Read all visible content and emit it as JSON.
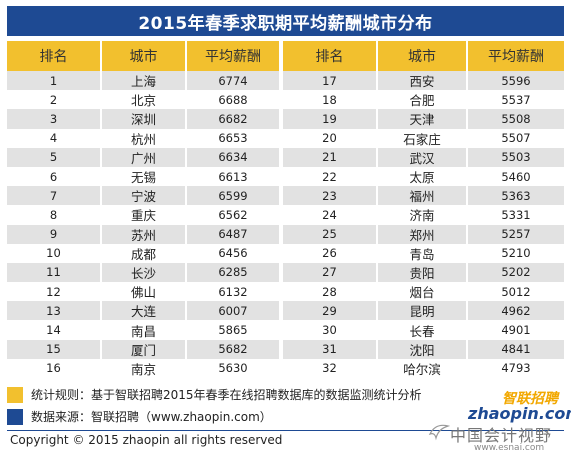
{
  "title": "2015年春季求职期平均薪酬城市分布",
  "headers": [
    "排名",
    "城市",
    "平均薪酬",
    "排名",
    "城市",
    "平均薪酬"
  ],
  "rows": [
    {
      "rank1": "1",
      "city1": "上海",
      "salary1": "6774",
      "rank2": "17",
      "city2": "西安",
      "salary2": "5596"
    },
    {
      "rank1": "2",
      "city1": "北京",
      "salary1": "6688",
      "rank2": "18",
      "city2": "合肥",
      "salary2": "5537"
    },
    {
      "rank1": "3",
      "city1": "深圳",
      "salary1": "6682",
      "rank2": "19",
      "city2": "天津",
      "salary2": "5508"
    },
    {
      "rank1": "4",
      "city1": "杭州",
      "salary1": "6653",
      "rank2": "20",
      "city2": "石家庄",
      "salary2": "5507"
    },
    {
      "rank1": "5",
      "city1": "广州",
      "salary1": "6634",
      "rank2": "21",
      "city2": "武汉",
      "salary2": "5503"
    },
    {
      "rank1": "6",
      "city1": "无锡",
      "salary1": "6613",
      "rank2": "22",
      "city2": "太原",
      "salary2": "5460"
    },
    {
      "rank1": "7",
      "city1": "宁波",
      "salary1": "6599",
      "rank2": "23",
      "city2": "福州",
      "salary2": "5363"
    },
    {
      "rank1": "8",
      "city1": "重庆",
      "salary1": "6562",
      "rank2": "24",
      "city2": "济南",
      "salary2": "5331"
    },
    {
      "rank1": "9",
      "city1": "苏州",
      "salary1": "6487",
      "rank2": "25",
      "city2": "郑州",
      "salary2": "5257"
    },
    {
      "rank1": "10",
      "city1": "成都",
      "salary1": "6456",
      "rank2": "26",
      "city2": "青岛",
      "salary2": "5210"
    },
    {
      "rank1": "11",
      "city1": "长沙",
      "salary1": "6285",
      "rank2": "27",
      "city2": "贵阳",
      "salary2": "5202"
    },
    {
      "rank1": "12",
      "city1": "佛山",
      "salary1": "6132",
      "rank2": "28",
      "city2": "烟台",
      "salary2": "5012"
    },
    {
      "rank1": "13",
      "city1": "大连",
      "salary1": "6007",
      "rank2": "29",
      "city2": "昆明",
      "salary2": "4962"
    },
    {
      "rank1": "14",
      "city1": "南昌",
      "salary1": "5865",
      "rank2": "30",
      "city2": "长春",
      "salary2": "4901"
    },
    {
      "rank1": "15",
      "city1": "厦门",
      "salary1": "5682",
      "rank2": "31",
      "city2": "沈阳",
      "salary2": "4841"
    },
    {
      "rank1": "16",
      "city1": "南京",
      "salary1": "5630",
      "rank2": "32",
      "city2": "哈尔滨",
      "salary2": "4793"
    }
  ],
  "legend": {
    "rule": "统计规则：基于智联招聘2015年春季在线招聘数据库的数据监测统计分析",
    "source": "数据来源：智联招聘（www.zhaopin.com）"
  },
  "logo": {
    "cn": "智联招聘",
    "en": "zhaopin",
    "dotcom": ".com"
  },
  "copyright": "Copyright   ©  2015 zhaopin all rights reserved",
  "watermark": {
    "cn": "中国会计视野",
    "url": "www.esnai.com"
  },
  "colors": {
    "title_bg": "#1e4a93",
    "header_bg": "#f2c02e",
    "stripe": "#e2e2e2"
  }
}
